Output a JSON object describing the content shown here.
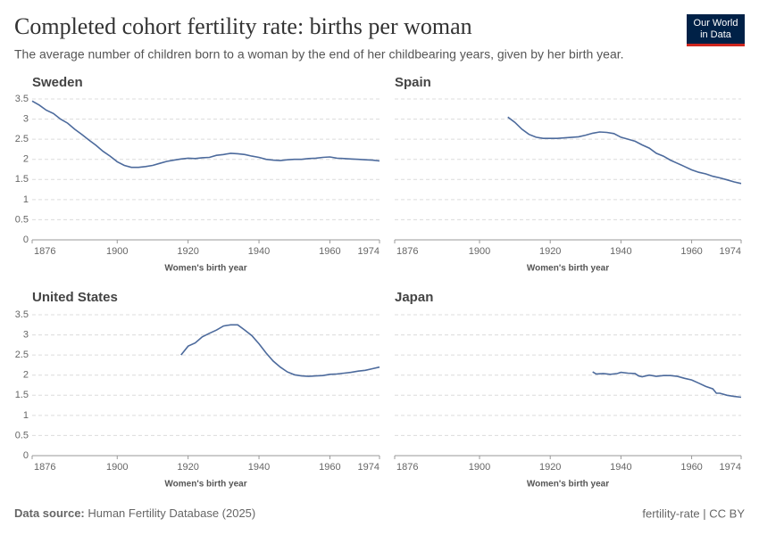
{
  "header": {
    "title": "Completed cohort fertility rate: births per woman",
    "subtitle": "The average number of children born to a woman by the end of her childbearing years, given by her birth year.",
    "logo_line1": "Our World",
    "logo_line2": "in Data"
  },
  "chart_data": [
    {
      "type": "line",
      "title": "Sweden",
      "xlabel": "Women's birth year",
      "x": [
        1876,
        1878,
        1880,
        1882,
        1884,
        1886,
        1888,
        1890,
        1892,
        1894,
        1896,
        1898,
        1900,
        1902,
        1904,
        1906,
        1908,
        1910,
        1912,
        1914,
        1916,
        1918,
        1920,
        1922,
        1924,
        1926,
        1928,
        1930,
        1932,
        1934,
        1936,
        1938,
        1940,
        1942,
        1944,
        1946,
        1948,
        1950,
        1952,
        1954,
        1956,
        1958,
        1960,
        1962,
        1964,
        1966,
        1968,
        1970,
        1972,
        1974
      ],
      "values": [
        3.45,
        3.35,
        3.22,
        3.14,
        3.0,
        2.9,
        2.75,
        2.62,
        2.48,
        2.35,
        2.2,
        2.08,
        1.94,
        1.85,
        1.8,
        1.8,
        1.82,
        1.85,
        1.9,
        1.95,
        1.98,
        2.01,
        2.03,
        2.02,
        2.04,
        2.05,
        2.1,
        2.12,
        2.15,
        2.14,
        2.12,
        2.08,
        2.05,
        2.0,
        1.98,
        1.97,
        1.99,
        2.0,
        2.0,
        2.02,
        2.03,
        2.05,
        2.06,
        2.03,
        2.02,
        2.01,
        2.0,
        1.99,
        1.98,
        1.96
      ],
      "color": "#4c6a9c",
      "xlim": [
        1876,
        1974
      ],
      "xticks": [
        1876,
        1900,
        1920,
        1940,
        1960,
        1974
      ],
      "ylim": [
        0,
        3.5
      ],
      "yticks": [
        0,
        0.5,
        1,
        1.5,
        2,
        2.5,
        3,
        3.5
      ],
      "grid": true
    },
    {
      "type": "line",
      "title": "Spain",
      "xlabel": "Women's birth year",
      "x": [
        1908,
        1910,
        1912,
        1914,
        1916,
        1918,
        1920,
        1922,
        1925,
        1928,
        1930,
        1932,
        1934,
        1936,
        1938,
        1940,
        1942,
        1944,
        1946,
        1948,
        1950,
        1952,
        1954,
        1956,
        1958,
        1960,
        1962,
        1964,
        1966,
        1968,
        1970,
        1972,
        1974
      ],
      "values": [
        3.05,
        2.92,
        2.75,
        2.62,
        2.55,
        2.52,
        2.52,
        2.52,
        2.54,
        2.56,
        2.6,
        2.65,
        2.68,
        2.67,
        2.64,
        2.55,
        2.5,
        2.45,
        2.36,
        2.28,
        2.15,
        2.08,
        1.98,
        1.9,
        1.82,
        1.74,
        1.68,
        1.64,
        1.58,
        1.54,
        1.49,
        1.44,
        1.4
      ],
      "color": "#4c6a9c",
      "xlim": [
        1876,
        1974
      ],
      "xticks": [
        1876,
        1900,
        1920,
        1940,
        1960,
        1974
      ],
      "ylim": [
        0,
        3.5
      ],
      "yticks": [
        0,
        0.5,
        1,
        1.5,
        2,
        2.5,
        3,
        3.5
      ],
      "grid": true
    },
    {
      "type": "line",
      "title": "United States",
      "xlabel": "Women's birth year",
      "x": [
        1918,
        1920,
        1922,
        1924,
        1926,
        1928,
        1930,
        1932,
        1934,
        1936,
        1938,
        1940,
        1942,
        1944,
        1946,
        1948,
        1950,
        1952,
        1954,
        1956,
        1958,
        1960,
        1962,
        1964,
        1966,
        1968,
        1970,
        1972,
        1974
      ],
      "values": [
        2.5,
        2.72,
        2.8,
        2.95,
        3.04,
        3.12,
        3.22,
        3.25,
        3.25,
        3.12,
        2.98,
        2.78,
        2.55,
        2.35,
        2.2,
        2.08,
        2.01,
        1.98,
        1.97,
        1.98,
        1.99,
        2.02,
        2.03,
        2.05,
        2.07,
        2.1,
        2.12,
        2.16,
        2.2
      ],
      "color": "#4c6a9c",
      "xlim": [
        1876,
        1974
      ],
      "xticks": [
        1876,
        1900,
        1920,
        1940,
        1960,
        1974
      ],
      "ylim": [
        0,
        3.5
      ],
      "yticks": [
        0,
        0.5,
        1,
        1.5,
        2,
        2.5,
        3,
        3.5
      ],
      "grid": true
    },
    {
      "type": "line",
      "title": "Japan",
      "xlabel": "Women's birth year",
      "x": [
        1932,
        1933,
        1935,
        1937,
        1939,
        1940,
        1942,
        1944,
        1945,
        1946,
        1948,
        1950,
        1952,
        1954,
        1956,
        1958,
        1960,
        1962,
        1964,
        1966,
        1967,
        1968,
        1970,
        1972,
        1974
      ],
      "values": [
        2.08,
        2.03,
        2.04,
        2.02,
        2.04,
        2.07,
        2.05,
        2.04,
        1.98,
        1.96,
        2.0,
        1.97,
        1.99,
        1.99,
        1.97,
        1.92,
        1.88,
        1.8,
        1.72,
        1.66,
        1.55,
        1.55,
        1.5,
        1.47,
        1.45
      ],
      "color": "#4c6a9c",
      "xlim": [
        1876,
        1974
      ],
      "xticks": [
        1876,
        1900,
        1920,
        1940,
        1960,
        1974
      ],
      "ylim": [
        0,
        3.5
      ],
      "yticks": [
        0,
        0.5,
        1,
        1.5,
        2,
        2.5,
        3,
        3.5
      ],
      "grid": true
    }
  ],
  "footer": {
    "source_label": "Data source:",
    "source": "Human Fertility Database (2025)",
    "right": "fertility-rate | CC BY"
  }
}
